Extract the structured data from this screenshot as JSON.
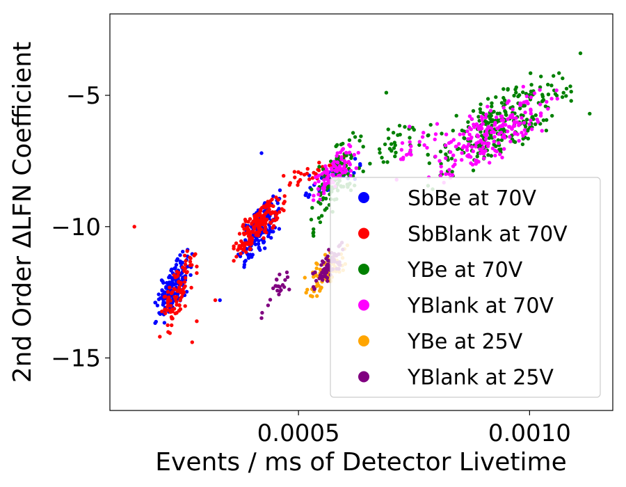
{
  "chart_data": {
    "type": "scatter",
    "title": "",
    "xlabel": "Events / ms of Detector Livetime",
    "ylabel": "2nd Order ΔLFN Coefficient",
    "xlim": [
      9.2e-05,
      0.00118
    ],
    "ylim": [
      -17,
      -1.9
    ],
    "xticks": [
      {
        "value": 0.0005,
        "label": "0.0005"
      },
      {
        "value": 0.001,
        "label": "0.0010"
      }
    ],
    "yticks": [
      {
        "value": -5,
        "label": "−5"
      },
      {
        "value": -10,
        "label": "−10"
      },
      {
        "value": -15,
        "label": "−15"
      }
    ],
    "grid": false,
    "legend_position": "lower-right",
    "series": [
      {
        "name": "SbBe at 70V",
        "color": "#0000ff",
        "clusters": [
          {
            "x": [
              0.00019,
              0.00027
            ],
            "y": [
              -13.9,
              -10.7
            ],
            "n": 170,
            "trend": 1
          },
          {
            "x": [
              0.00037,
              0.00046
            ],
            "y": [
              -11.8,
              -8.6
            ],
            "n": 150,
            "trend": 1
          },
          {
            "x": [
              0.00046,
              0.00065
            ],
            "y": [
              -9.6,
              -7.2
            ],
            "n": 30,
            "trend": 1
          }
        ],
        "points": [
          [
            0.00033,
            -12.8
          ],
          [
            0.00042,
            -7.2
          ]
        ]
      },
      {
        "name": "SbBlank at 70V",
        "color": "#ff0000",
        "clusters": [
          {
            "x": [
              0.0002,
              0.00028
            ],
            "y": [
              -14.4,
              -10.5
            ],
            "n": 90,
            "trend": 1
          },
          {
            "x": [
              0.00036,
              0.00047
            ],
            "y": [
              -11.4,
              -8.4
            ],
            "n": 150,
            "trend": 1
          },
          {
            "x": [
              0.00046,
              0.00062
            ],
            "y": [
              -8.7,
              -7.2
            ],
            "n": 35,
            "trend": 1
          }
        ],
        "points": [
          [
            0.000145,
            -10.0
          ],
          [
            0.00027,
            -14.4
          ],
          [
            0.00032,
            -12.8
          ],
          [
            0.00028,
            -13.6
          ]
        ]
      },
      {
        "name": "YBe at 70V",
        "color": "#008000",
        "clusters": [
          {
            "x": [
              0.00052,
              0.00064
            ],
            "y": [
              -10.3,
              -6.0
            ],
            "n": 130,
            "trend": 1
          },
          {
            "x": [
              0.00078,
              0.00109
            ],
            "y": [
              -8.5,
              -3.7
            ],
            "n": 260,
            "trend": 1
          },
          {
            "x": [
              0.00064,
              0.0008
            ],
            "y": [
              -8.4,
              -5.3
            ],
            "n": 30,
            "trend": 1
          }
        ],
        "points": [
          [
            0.00111,
            -3.4
          ],
          [
            0.00113,
            -5.7
          ],
          [
            0.00069,
            -4.9
          ],
          [
            0.00073,
            -6.2
          ]
        ]
      },
      {
        "name": "YBlank at 70V",
        "color": "#ff00ff",
        "clusters": [
          {
            "x": [
              0.00052,
              0.00063
            ],
            "y": [
              -9.2,
              -6.6
            ],
            "n": 90,
            "trend": 1
          },
          {
            "x": [
              0.00078,
              0.00106
            ],
            "y": [
              -8.5,
              -4.3
            ],
            "n": 210,
            "trend": 1
          },
          {
            "x": [
              0.00068,
              0.0008
            ],
            "y": [
              -8.6,
              -5.5
            ],
            "n": 20,
            "trend": 1
          }
        ],
        "points": []
      },
      {
        "name": "YBe at 25V",
        "color": "#ffa500",
        "clusters": [
          {
            "x": [
              0.00051,
              0.00061
            ],
            "y": [
              -12.9,
              -10.5
            ],
            "n": 90,
            "trend": 1
          }
        ],
        "points": []
      },
      {
        "name": "YBlank at 25V",
        "color": "#800080",
        "clusters": [
          {
            "x": [
              0.00053,
              0.0006
            ],
            "y": [
              -12.6,
              -10.4
            ],
            "n": 70,
            "trend": 1
          },
          {
            "x": [
              0.00042,
              0.00048
            ],
            "y": [
              -13.6,
              -11.3
            ],
            "n": 22,
            "trend": 1
          }
        ],
        "points": []
      }
    ]
  }
}
